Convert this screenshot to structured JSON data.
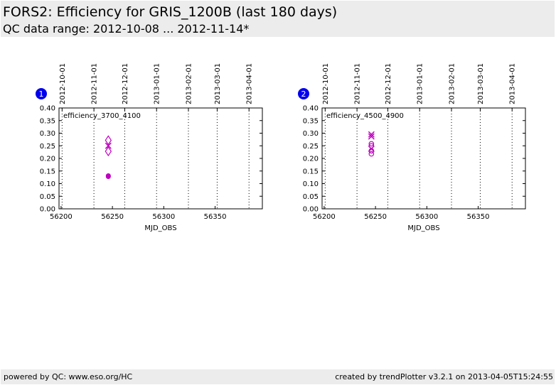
{
  "header": {
    "title": "FORS2: Efficiency for GRIS_1200B (last 180 days)",
    "subtitle": "QC data range: 2012-10-08 ... 2012-11-14*"
  },
  "footer": {
    "left": "powered by QC: www.eso.org/HC",
    "right": "created by trendPlotter v3.2.1 on 2013-04-05T15:24:55"
  },
  "chart_data": [
    {
      "type": "scatter",
      "badge": "1",
      "label": "efficiency_3700_4100",
      "xlabel": "MJD_OBS",
      "xlim": [
        56198,
        56396
      ],
      "ylim": [
        0.0,
        0.4
      ],
      "x_ticks": [
        56200,
        56250,
        56300,
        56350
      ],
      "y_ticks": [
        0.0,
        0.05,
        0.1,
        0.15,
        0.2,
        0.25,
        0.3,
        0.35,
        0.4
      ],
      "date_ticks": [
        {
          "label": "2012-10-01",
          "mjd": 56201
        },
        {
          "label": "2012-11-01",
          "mjd": 56232
        },
        {
          "label": "2012-12-01",
          "mjd": 56262
        },
        {
          "label": "2013-01-01",
          "mjd": 56293
        },
        {
          "label": "2013-02-01",
          "mjd": 56324
        },
        {
          "label": "2013-03-01",
          "mjd": 56352
        },
        {
          "label": "2013-04-01",
          "mjd": 56383
        }
      ],
      "color": "#bf00bf",
      "series": [
        {
          "marker": "diamond",
          "points": [
            {
              "x": 56246,
              "y": 0.272
            },
            {
              "x": 56246,
              "y": 0.228
            }
          ]
        },
        {
          "marker": "x",
          "points": [
            {
              "x": 56246,
              "y": 0.25
            }
          ]
        },
        {
          "marker": "dot",
          "points": [
            {
              "x": 56246,
              "y": 0.131
            },
            {
              "x": 56246,
              "y": 0.128
            }
          ]
        }
      ]
    },
    {
      "type": "scatter",
      "badge": "2",
      "label": "efficiency_4500_4900",
      "xlabel": "MJD_OBS",
      "xlim": [
        56198,
        56396
      ],
      "ylim": [
        0.0,
        0.4
      ],
      "x_ticks": [
        56200,
        56250,
        56300,
        56350
      ],
      "y_ticks": [
        0.0,
        0.05,
        0.1,
        0.15,
        0.2,
        0.25,
        0.3,
        0.35,
        0.4
      ],
      "date_ticks": [
        {
          "label": "2012-10-01",
          "mjd": 56201
        },
        {
          "label": "2012-11-01",
          "mjd": 56232
        },
        {
          "label": "2012-12-01",
          "mjd": 56262
        },
        {
          "label": "2013-01-01",
          "mjd": 56293
        },
        {
          "label": "2013-02-01",
          "mjd": 56324
        },
        {
          "label": "2013-03-01",
          "mjd": 56352
        },
        {
          "label": "2013-04-01",
          "mjd": 56383
        }
      ],
      "color": "#bf00bf",
      "series": [
        {
          "marker": "x",
          "points": [
            {
              "x": 56246,
              "y": 0.295
            },
            {
              "x": 56246,
              "y": 0.287
            },
            {
              "x": 56246,
              "y": 0.238
            }
          ]
        },
        {
          "marker": "circle",
          "points": [
            {
              "x": 56246,
              "y": 0.258
            },
            {
              "x": 56246,
              "y": 0.25
            },
            {
              "x": 56246,
              "y": 0.23
            },
            {
              "x": 56246,
              "y": 0.218
            }
          ]
        }
      ]
    }
  ]
}
